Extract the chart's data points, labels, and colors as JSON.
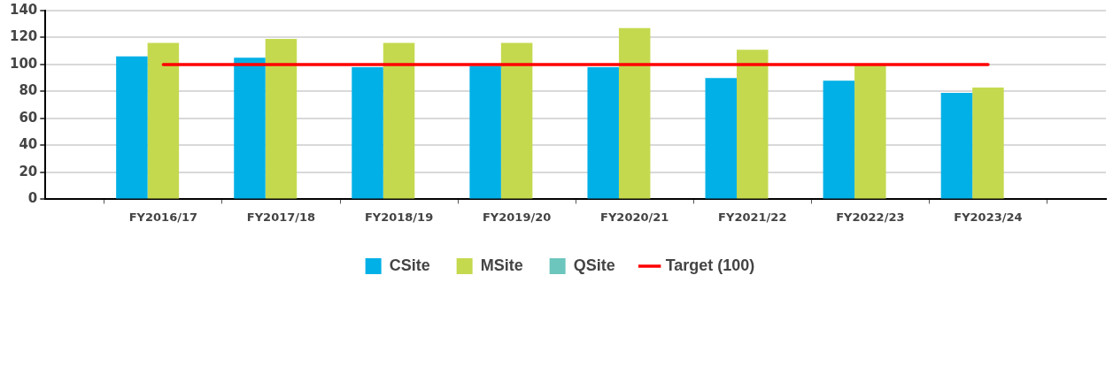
{
  "chart_data": {
    "type": "bar",
    "categories": [
      "FY2016/17",
      "FY2017/18",
      "FY2018/19",
      "FY2019/20",
      "FY2020/21",
      "FY2021/22",
      "FY2022/23",
      "FY2023/24"
    ],
    "series": [
      {
        "name": "CSite",
        "color": "#00b0e6",
        "values": [
          106,
          105,
          98,
          99,
          98,
          90,
          88,
          79
        ]
      },
      {
        "name": "MSite",
        "color": "#c5d94f",
        "values": [
          116,
          119,
          116,
          116,
          127,
          111,
          100,
          83
        ]
      },
      {
        "name": "QSite",
        "color": "#6cc6bd",
        "values": [
          null,
          null,
          null,
          null,
          null,
          null,
          null,
          null
        ]
      },
      {
        "name": "Target (100)",
        "type": "line",
        "color": "#ff0000",
        "values": [
          100,
          100,
          100,
          100,
          100,
          100,
          100,
          100
        ]
      }
    ],
    "ylim": [
      0,
      140
    ],
    "yticks": [
      0,
      20,
      40,
      60,
      80,
      100,
      120,
      140
    ],
    "grid": "y",
    "legend": "bottom",
    "marker": "none"
  }
}
